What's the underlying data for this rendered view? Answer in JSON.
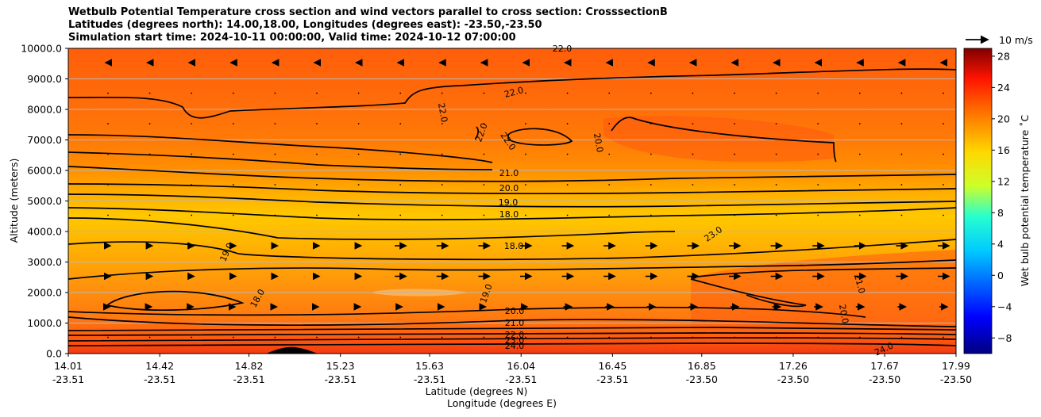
{
  "title": {
    "line1": "Wetbulb Potential Temperature cross section and wind vectors parallel to cross section: CrosssectionB",
    "line2": "Latitudes (degrees north): 14.00,18.00, Longitudes (degrees east): -23.50,-23.50",
    "line3": "Simulation start time: 2024-10-11 00:00:00, Valid time: 2024-10-12 07:00:00"
  },
  "chart_data": {
    "type": "heatmap",
    "xlabel": "Latitude (degrees N)",
    "xlabel2": "Longitude (degrees E)",
    "ylabel": "Altitude (meters)",
    "ylim": [
      0,
      10000
    ],
    "y_ticks": [
      "0.0",
      "1000.0",
      "2000.0",
      "3000.0",
      "4000.0",
      "5000.0",
      "6000.0",
      "7000.0",
      "8000.0",
      "9000.0",
      "10000.0"
    ],
    "x_ticks": [
      {
        "lat": "14.01",
        "lon": "-23.51"
      },
      {
        "lat": "14.42",
        "lon": "-23.51"
      },
      {
        "lat": "14.82",
        "lon": "-23.51"
      },
      {
        "lat": "15.23",
        "lon": "-23.51"
      },
      {
        "lat": "15.63",
        "lon": "-23.51"
      },
      {
        "lat": "16.04",
        "lon": "-23.51"
      },
      {
        "lat": "16.45",
        "lon": "-23.51"
      },
      {
        "lat": "16.85",
        "lon": "-23.50"
      },
      {
        "lat": "17.26",
        "lon": "-23.50"
      },
      {
        "lat": "17.67",
        "lon": "-23.50"
      },
      {
        "lat": "17.99",
        "lon": "-23.50"
      }
    ],
    "grid": "horizontal",
    "colorbar": {
      "label": "Wet bulb potential temperature ˚C",
      "range": [
        -10,
        29
      ],
      "ticks": [
        "−8",
        "−4",
        "0",
        "4",
        "8",
        "12",
        "16",
        "20",
        "24",
        "28"
      ]
    },
    "quiver_key": "10 m/s",
    "contour_labels": [
      "21.0",
      "20.0",
      "19.0",
      "18.0",
      "18.0",
      "22.0",
      "22.0",
      "22.0",
      "22.0",
      "22.0",
      "20.0",
      "19.0",
      "18.0",
      "19.0",
      "20.0",
      "21.0",
      "22.0",
      "23.0",
      "24.0",
      "21.0",
      "20.0",
      "24.0",
      "23.0"
    ],
    "profile": [
      {
        "alt": 0,
        "temp": 24.5
      },
      {
        "alt": 500,
        "temp": 23.0
      },
      {
        "alt": 1000,
        "temp": 21.0
      },
      {
        "alt": 1500,
        "temp": 20.0
      },
      {
        "alt": 2500,
        "temp": 20.0
      },
      {
        "alt": 3500,
        "temp": 19.0
      },
      {
        "alt": 4500,
        "temp": 17.8
      },
      {
        "alt": 5500,
        "temp": 19.0
      },
      {
        "alt": 6500,
        "temp": 21.0
      },
      {
        "alt": 7500,
        "temp": 22.0
      },
      {
        "alt": 8500,
        "temp": 22.5
      },
      {
        "alt": 9500,
        "temp": 23.0
      },
      {
        "alt": 10000,
        "temp": 23.5
      }
    ]
  }
}
